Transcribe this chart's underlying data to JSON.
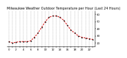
{
  "title": "Milwaukee Weather Outdoor Temperature per Hour (Last 24 Hours)",
  "hours": [
    0,
    1,
    2,
    3,
    4,
    5,
    6,
    7,
    8,
    9,
    10,
    11,
    12,
    13,
    14,
    15,
    16,
    17,
    18,
    19,
    20,
    21,
    22,
    23
  ],
  "temps": [
    22,
    20,
    21,
    22,
    22,
    22,
    23,
    28,
    34,
    42,
    50,
    56,
    58,
    58,
    56,
    52,
    45,
    38,
    34,
    30,
    28,
    27,
    26,
    25
  ],
  "line_color": "#dd0000",
  "marker_color": "#000000",
  "grid_color": "#666666",
  "bg_color": "#ffffff",
  "ylim": [
    15,
    65
  ],
  "ytick_values": [
    20,
    30,
    40,
    50,
    60
  ],
  "ytick_labels": [
    "20",
    "30",
    "40",
    "50",
    "60"
  ],
  "xtick_hours": [
    0,
    2,
    4,
    6,
    8,
    10,
    12,
    14,
    16,
    18,
    20,
    22
  ],
  "title_fontsize": 3.5,
  "tick_fontsize": 2.8
}
